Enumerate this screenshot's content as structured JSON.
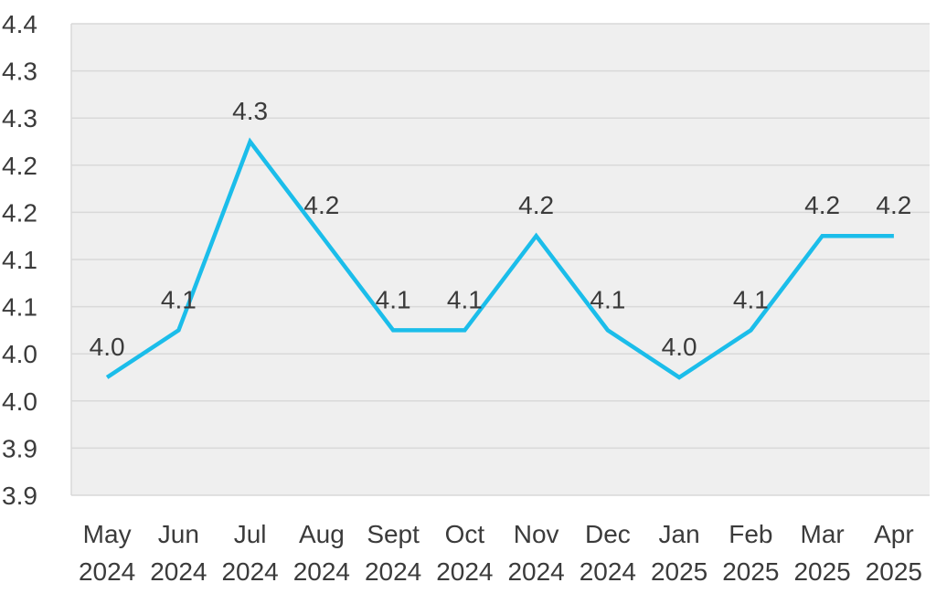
{
  "chart_data": {
    "type": "line",
    "title": "",
    "xlabel": "",
    "ylabel": "",
    "categories": [
      [
        "May",
        "2024"
      ],
      [
        "Jun",
        "2024"
      ],
      [
        "Jul",
        "2024"
      ],
      [
        "Aug",
        "2024"
      ],
      [
        "Sept",
        "2024"
      ],
      [
        "Oct",
        "2024"
      ],
      [
        "Nov",
        "2024"
      ],
      [
        "Dec",
        "2024"
      ],
      [
        "Jan",
        "2025"
      ],
      [
        "Feb",
        "2025"
      ],
      [
        "Mar",
        "2025"
      ],
      [
        "Apr",
        "2025"
      ]
    ],
    "series": [
      {
        "values": [
          4.0,
          4.05,
          4.25,
          4.15,
          4.05,
          4.05,
          4.15,
          4.05,
          4.0,
          4.05,
          4.15,
          4.15
        ],
        "labels": [
          "4.0",
          "4.1",
          "4.3",
          "4.2",
          "4.1",
          "4.1",
          "4.2",
          "4.1",
          "4.0",
          "4.1",
          "4.2",
          "4.2"
        ],
        "color": "#1bbdea"
      }
    ],
    "ylim": [
      3.875,
      4.375
    ],
    "y_ticks": [
      {
        "value": 4.375,
        "label": "4.4"
      },
      {
        "value": 4.325,
        "label": "4.3"
      },
      {
        "value": 4.275,
        "label": "4.3"
      },
      {
        "value": 4.225,
        "label": "4.2"
      },
      {
        "value": 4.175,
        "label": "4.2"
      },
      {
        "value": 4.125,
        "label": "4.1"
      },
      {
        "value": 4.075,
        "label": "4.1"
      },
      {
        "value": 4.025,
        "label": "4.0"
      },
      {
        "value": 3.975,
        "label": "4.0"
      },
      {
        "value": 3.925,
        "label": "3.9"
      },
      {
        "value": 3.875,
        "label": "3.9"
      }
    ],
    "grid": true,
    "legend": "none",
    "plot_background": "#efefef",
    "grid_color": "#d9d9d9"
  }
}
